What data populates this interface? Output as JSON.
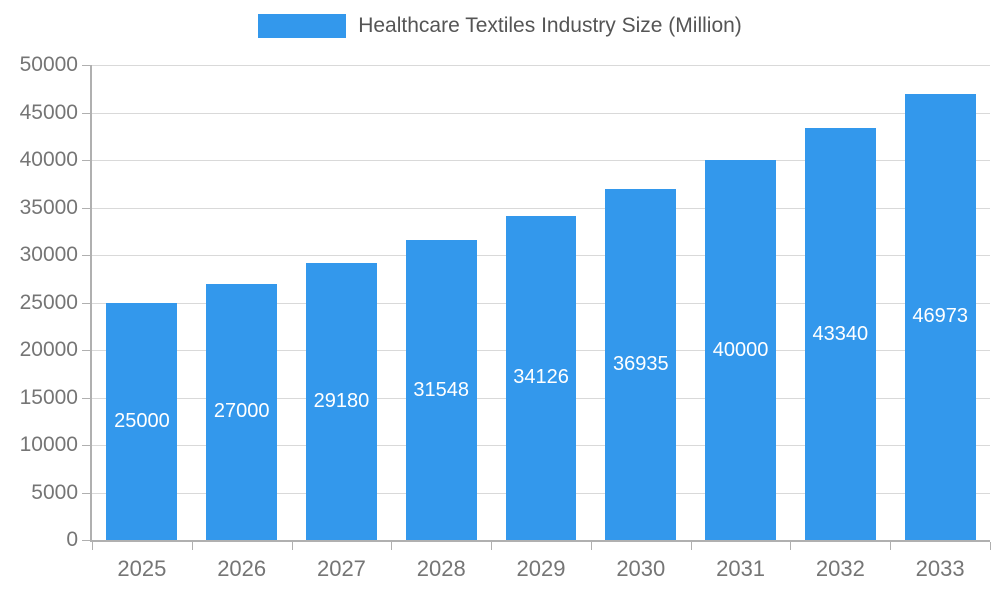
{
  "chart_data": {
    "type": "bar",
    "title": "Healthcare Textiles Industry Size (Million)",
    "categories": [
      "2025",
      "2026",
      "2027",
      "2028",
      "2029",
      "2030",
      "2031",
      "2032",
      "2033"
    ],
    "values": [
      25000,
      27000,
      29180,
      31548,
      34126,
      36935,
      40000,
      43340,
      46973
    ],
    "xlabel": "",
    "ylabel": "",
    "ylim": [
      0,
      50000
    ],
    "ytick_step": 5000,
    "grid": "horizontal",
    "legend_position": "top-center",
    "bar_color": "#3398EC",
    "value_label_color": "#ffffff",
    "axis_text_color": "#757575"
  }
}
